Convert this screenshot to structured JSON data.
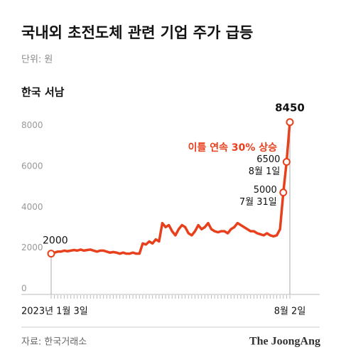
{
  "chart_data": {
    "type": "line",
    "title": "국내외 초전도체 관련 기업 주가 급등",
    "subtitle": "단위: 원",
    "series_label": "한국 서남",
    "annotation": "이틀 연속 30% 상승",
    "source": "자료: 한국거래소",
    "logo": "The JoongAng",
    "categories": [
      "2023년 1월 3일",
      null,
      null,
      null,
      null,
      null,
      null,
      null,
      null,
      null,
      null,
      null,
      null,
      null,
      null,
      null,
      null,
      null,
      null,
      null,
      null,
      null,
      null,
      null,
      null,
      null,
      null,
      null,
      null,
      null,
      null,
      null,
      null,
      null,
      null,
      null,
      null,
      null,
      null,
      null,
      null,
      null,
      null,
      null,
      null,
      null,
      null,
      null,
      null,
      null,
      null,
      null,
      null,
      null,
      null,
      null,
      null,
      null,
      null,
      null,
      null,
      null,
      null,
      null,
      null,
      null,
      null,
      null,
      null,
      null,
      null,
      "7월 31일",
      "8월 1일",
      "8월 2일"
    ],
    "values": [
      2000,
      2050,
      2100,
      2100,
      2150,
      2120,
      2150,
      2180,
      2150,
      2200,
      2150,
      2180,
      2200,
      2150,
      2100,
      2150,
      2150,
      2100,
      2050,
      2080,
      2050,
      2000,
      2050,
      2000,
      2000,
      2050,
      2000,
      2000,
      2500,
      2450,
      2600,
      2500,
      2700,
      2600,
      3500,
      3300,
      3400,
      3100,
      2900,
      3200,
      3400,
      3300,
      3000,
      2900,
      3100,
      3400,
      3200,
      3300,
      3500,
      3200,
      3100,
      3050,
      3100,
      3100,
      3000,
      3200,
      3300,
      3500,
      3400,
      3300,
      3200,
      3100,
      3100,
      3000,
      2950,
      2900,
      3000,
      2900,
      2850,
      2900,
      3200,
      5000,
      6500,
      8450
    ],
    "color": "#e8401c",
    "ylim": [
      0,
      9000
    ],
    "yticks": [
      0,
      2000,
      4000,
      6000,
      8000
    ],
    "grid": false
  }
}
